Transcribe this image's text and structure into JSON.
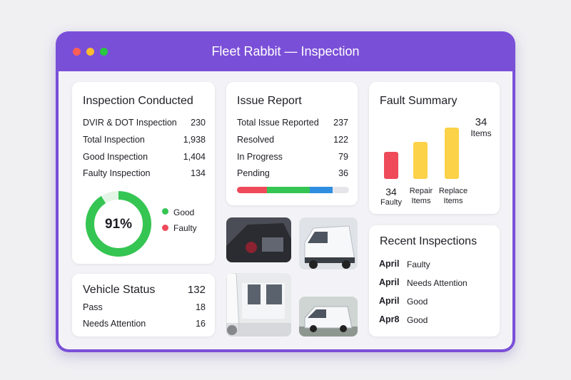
{
  "window": {
    "title": "Fleet Rabbit — Inspection"
  },
  "inspection": {
    "title": "Inspection Conducted",
    "rows": [
      [
        "DVIR & DOT Inspection",
        "230"
      ],
      [
        "Total Inspection",
        "1,938"
      ],
      [
        "Good Inspection",
        "1,404"
      ],
      [
        "Faulty Inspection",
        "134"
      ]
    ],
    "donut": {
      "value": 91,
      "label": "91%"
    },
    "legend": [
      "Good",
      "Faulty"
    ]
  },
  "issues": {
    "title": "Issue Report",
    "rows": [
      [
        "Total Issue Reported",
        "237"
      ],
      [
        "Resolved",
        "122"
      ],
      [
        "In Progress",
        "79"
      ],
      [
        "Pending",
        "36"
      ]
    ]
  },
  "fault_summary": {
    "title": "Fault Summary",
    "total": "34",
    "total_unit": "Items",
    "bars": [
      {
        "value": "34",
        "label": "Faulty"
      },
      {
        "label": "Repair Items"
      },
      {
        "label": "Replace Items"
      }
    ]
  },
  "vehicle_status": {
    "title": "Vehicle Status",
    "total": "132",
    "rows": [
      [
        "Pass",
        "18"
      ],
      [
        "Needs Attention",
        "16"
      ]
    ]
  },
  "recent": {
    "title": "Recent Inspections",
    "rows": [
      [
        "April",
        "Faulty"
      ],
      [
        "April",
        "Needs Attention"
      ],
      [
        "April",
        "Good"
      ],
      [
        "Apr8",
        "Good"
      ]
    ]
  }
}
